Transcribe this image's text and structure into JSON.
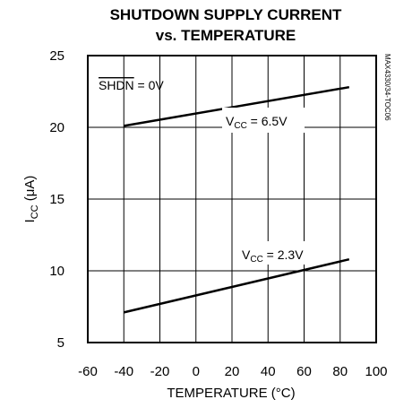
{
  "chart_data": {
    "type": "line",
    "title_line1": "SHUTDOWN SUPPLY CURRENT",
    "title_line2": "vs. TEMPERATURE",
    "xlabel": "TEMPERATURE (°C)",
    "ylabel_main": "I",
    "ylabel_sub": "CC",
    "ylabel_unit": " (μA)",
    "xlim": [
      -60,
      100
    ],
    "ylim": [
      5,
      25
    ],
    "x_ticks": [
      "-60",
      "-40",
      "-20",
      "0",
      "20",
      "40",
      "60",
      "80",
      "100"
    ],
    "y_ticks": [
      "5",
      "10",
      "15",
      "20",
      "25"
    ],
    "x_grid": [
      -40,
      -20,
      0,
      20,
      40,
      60,
      80
    ],
    "y_grid": [
      10,
      15,
      20
    ],
    "grid": true,
    "legend": "none",
    "series": [
      {
        "label_main": "V",
        "label_sub": "CC",
        "label_rest": " = 6.5V",
        "x": [
          -40,
          85
        ],
        "y": [
          20.1,
          22.8
        ]
      },
      {
        "label_main": "V",
        "label_sub": "CC",
        "label_rest": " = 2.3V",
        "x": [
          -40,
          85
        ],
        "y": [
          7.1,
          10.8
        ]
      }
    ],
    "condition_label": "SHDN = 0V",
    "condition_overline": "SHDN",
    "condition_rest": " = 0V",
    "side_code": "MAX4330/34-TOC06"
  }
}
